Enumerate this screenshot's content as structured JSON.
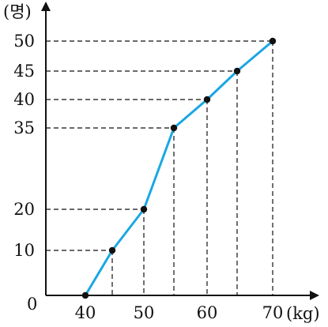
{
  "chart_data": {
    "type": "line",
    "title": "",
    "xlabel": "(kg)",
    "ylabel": "(명)",
    "origin_label": "0",
    "x_ticks": [
      40,
      50,
      60,
      70
    ],
    "y_ticks": [
      10,
      20,
      35,
      40,
      45,
      50
    ],
    "x": [
      40,
      45,
      50,
      55,
      60,
      65,
      70
    ],
    "series": [
      {
        "values": [
          0,
          10,
          20,
          35,
          40,
          45,
          50
        ],
        "color": "#1ba7e3"
      }
    ],
    "grid": false,
    "guide_lines": "dashed drop lines from each point to both axes"
  }
}
